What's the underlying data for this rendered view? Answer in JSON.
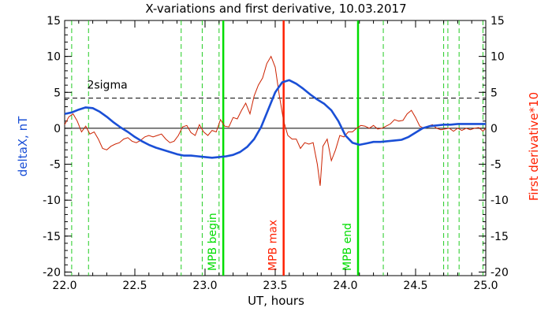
{
  "chart_data": {
    "type": "line",
    "title": "X-variations and first derivative, 10.03.2017",
    "xlabel": "UT, hours",
    "ylabel_left": "deltaX, nT",
    "ylabel_right": "First derivative*10",
    "xlim": [
      22.0,
      25.0
    ],
    "ylim": [
      -20.5,
      15
    ],
    "x_ticks": [
      "22.0",
      "22.5",
      "23.0",
      "23.5",
      "24.0",
      "24.5",
      "25.0"
    ],
    "y_ticks": [
      "15",
      "10",
      "5",
      "0",
      "-5",
      "-10",
      "-15",
      "-20"
    ],
    "threshold": {
      "label": "2sigma",
      "value": 4.2
    },
    "dashed_marker_lines": [
      22.05,
      22.17,
      22.83,
      22.98,
      23.1,
      24.27,
      24.7,
      24.73,
      24.81,
      24.98
    ],
    "markers": [
      {
        "label": "MPB begin",
        "x": 23.13,
        "color": "#00dd00"
      },
      {
        "label": "MPB max",
        "x": 23.56,
        "color": "#ff2000"
      },
      {
        "label": "MPB end",
        "x": 24.09,
        "color": "#00dd00"
      }
    ],
    "series": [
      {
        "name": "deltaX",
        "color": "#1a4fd6",
        "x": [
          22.0,
          22.05,
          22.1,
          22.15,
          22.2,
          22.25,
          22.3,
          22.35,
          22.4,
          22.45,
          22.5,
          22.55,
          22.6,
          22.65,
          22.7,
          22.75,
          22.8,
          22.85,
          22.9,
          22.95,
          23.0,
          23.05,
          23.1,
          23.15,
          23.2,
          23.25,
          23.3,
          23.35,
          23.4,
          23.45,
          23.5,
          23.55,
          23.6,
          23.65,
          23.7,
          23.75,
          23.8,
          23.85,
          23.9,
          23.95,
          24.0,
          24.05,
          24.1,
          24.15,
          24.2,
          24.25,
          24.3,
          24.35,
          24.4,
          24.45,
          24.5,
          24.55,
          24.6,
          24.65,
          24.7,
          24.75,
          24.8,
          24.85,
          24.9,
          24.95,
          25.0
        ],
        "values": [
          2.0,
          2.2,
          2.6,
          2.9,
          2.8,
          2.3,
          1.6,
          0.8,
          0.1,
          -0.5,
          -1.2,
          -1.8,
          -2.3,
          -2.7,
          -3.0,
          -3.3,
          -3.6,
          -3.8,
          -3.8,
          -3.9,
          -4.0,
          -4.1,
          -4.0,
          -3.9,
          -3.7,
          -3.3,
          -2.6,
          -1.5,
          0.2,
          2.6,
          5.0,
          6.4,
          6.7,
          6.2,
          5.5,
          4.7,
          4.0,
          3.4,
          2.5,
          1.0,
          -1.0,
          -2.0,
          -2.3,
          -2.1,
          -1.9,
          -1.9,
          -1.8,
          -1.7,
          -1.6,
          -1.2,
          -0.6,
          0.0,
          0.3,
          0.4,
          0.5,
          0.5,
          0.6,
          0.6,
          0.6,
          0.6,
          0.6
        ]
      },
      {
        "name": "first derivative",
        "color": "#cc2200",
        "x": [
          22.0,
          22.03,
          22.06,
          22.09,
          22.12,
          22.15,
          22.18,
          22.21,
          22.24,
          22.27,
          22.3,
          22.33,
          22.36,
          22.39,
          22.42,
          22.45,
          22.48,
          22.51,
          22.54,
          22.57,
          22.6,
          22.63,
          22.66,
          22.69,
          22.72,
          22.75,
          22.78,
          22.81,
          22.84,
          22.87,
          22.9,
          22.93,
          22.96,
          22.99,
          23.02,
          23.05,
          23.08,
          23.11,
          23.14,
          23.17,
          23.2,
          23.23,
          23.26,
          23.29,
          23.32,
          23.35,
          23.38,
          23.41,
          23.44,
          23.47,
          23.5,
          23.53,
          23.56,
          23.59,
          23.62,
          23.65,
          23.68,
          23.71,
          23.74,
          23.77,
          23.8,
          23.82,
          23.84,
          23.87,
          23.9,
          23.93,
          23.96,
          23.99,
          24.02,
          24.05,
          24.08,
          24.11,
          24.14,
          24.17,
          24.2,
          24.23,
          24.26,
          24.29,
          24.32,
          24.35,
          24.38,
          24.41,
          24.44,
          24.47,
          24.5,
          24.53,
          24.56,
          24.59,
          24.62,
          24.65,
          24.68,
          24.71,
          24.74,
          24.77,
          24.8,
          24.83,
          24.86,
          24.89,
          24.92,
          24.95,
          24.98,
          25.0
        ],
        "values": [
          0.5,
          1.6,
          2.0,
          1.0,
          -0.5,
          0.3,
          -0.8,
          -0.5,
          -1.5,
          -2.8,
          -3.0,
          -2.5,
          -2.2,
          -2.0,
          -1.5,
          -1.3,
          -1.8,
          -2.0,
          -1.7,
          -1.2,
          -1.0,
          -1.2,
          -1.0,
          -0.8,
          -1.5,
          -2.0,
          -1.8,
          -1.0,
          0.2,
          0.4,
          -0.6,
          -1.0,
          0.5,
          -0.5,
          -1.0,
          -0.3,
          -0.5,
          1.2,
          0.3,
          0.2,
          1.5,
          1.3,
          2.5,
          3.5,
          2.0,
          4.5,
          6.0,
          7.0,
          9.0,
          10.0,
          8.5,
          4.5,
          1.0,
          -1.0,
          -1.5,
          -1.5,
          -2.8,
          -2.0,
          -2.2,
          -2.0,
          -5.0,
          -8.0,
          -2.5,
          -1.5,
          -4.5,
          -3.0,
          -1.0,
          -1.2,
          -0.5,
          -0.5,
          0.0,
          0.4,
          0.3,
          0.0,
          0.4,
          -0.1,
          0.0,
          0.3,
          0.6,
          1.2,
          1.0,
          1.1,
          2.0,
          2.5,
          1.5,
          0.3,
          0.0,
          0.3,
          0.5,
          0.0,
          -0.2,
          -0.1,
          0.0,
          -0.4,
          0.0,
          -0.3,
          0.0,
          -0.2,
          0.0,
          0.1,
          -0.4,
          0.0
        ]
      }
    ]
  }
}
